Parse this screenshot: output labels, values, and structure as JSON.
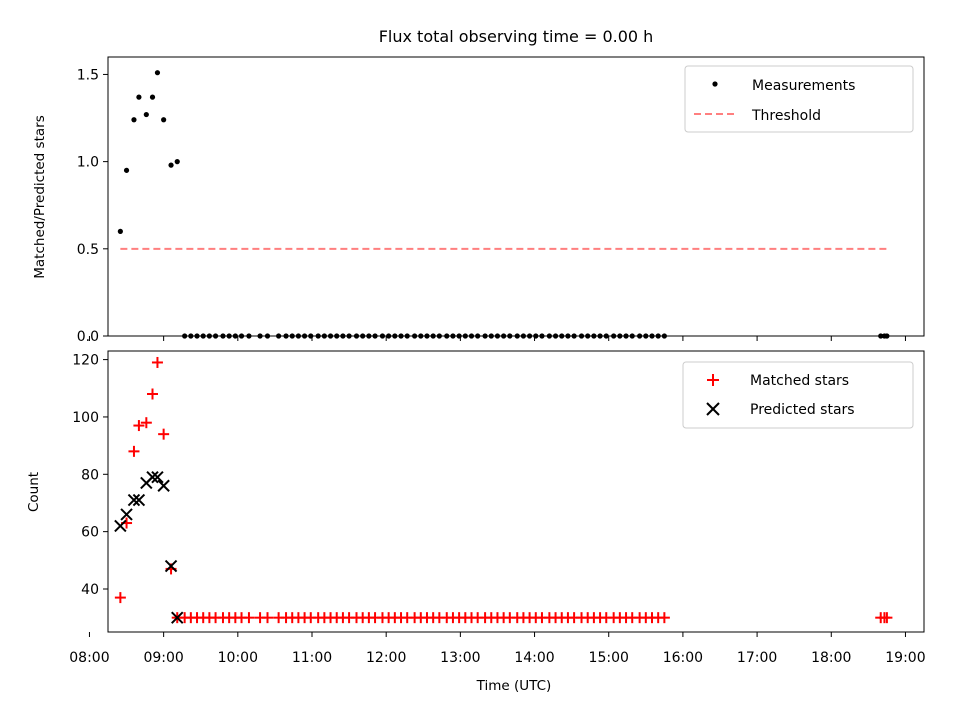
{
  "chart_data": [
    {
      "type": "scatter",
      "title": "Flux total observing time = 0.00 h",
      "xlabel": "",
      "ylabel": "Matched/Predicted stars",
      "xlim": [
        "08:15",
        "19:15"
      ],
      "ylim": [
        0,
        1.6
      ],
      "yticks": [
        0.0,
        0.5,
        1.0,
        1.5
      ],
      "ytick_labels": [
        "0.0",
        "0.5",
        "1.0",
        "1.5"
      ],
      "legend_position": "top-right",
      "grid": false,
      "series": [
        {
          "name": "Measurements",
          "kind": "scatter",
          "marker": "dot",
          "color": "#000000",
          "x": [
            "08:25",
            "08:30",
            "08:36",
            "08:40",
            "08:46",
            "08:51",
            "08:55",
            "09:00",
            "09:06",
            "09:11",
            "09:17",
            "09:22",
            "09:27",
            "09:32",
            "09:37",
            "09:42",
            "09:48",
            "09:53",
            "09:58",
            "10:03",
            "10:09",
            "10:18",
            "10:24",
            "10:33",
            "10:39",
            "10:44",
            "10:49",
            "10:54",
            "10:59",
            "11:05",
            "11:10",
            "11:15",
            "11:20",
            "11:25",
            "11:30",
            "11:36",
            "11:41",
            "11:46",
            "11:51",
            "11:57",
            "12:02",
            "12:07",
            "12:12",
            "12:17",
            "12:23",
            "12:28",
            "12:33",
            "12:38",
            "12:43",
            "12:49",
            "12:54",
            "12:59",
            "13:04",
            "13:09",
            "13:14",
            "13:20",
            "13:25",
            "13:30",
            "13:35",
            "13:40",
            "13:46",
            "13:51",
            "13:56",
            "14:01",
            "14:06",
            "14:12",
            "14:17",
            "14:22",
            "14:27",
            "14:32",
            "14:38",
            "14:43",
            "14:48",
            "14:53",
            "14:58",
            "15:04",
            "15:09",
            "15:14",
            "15:19",
            "15:25",
            "15:30",
            "15:35",
            "15:40",
            "15:45",
            "18:40",
            "18:43",
            "18:45"
          ],
          "y": [
            0.6,
            0.95,
            1.24,
            1.37,
            1.27,
            1.37,
            1.51,
            1.24,
            0.98,
            1.0,
            0,
            0,
            0,
            0,
            0,
            0,
            0,
            0,
            0,
            0,
            0,
            0,
            0,
            0,
            0,
            0,
            0,
            0,
            0,
            0,
            0,
            0,
            0,
            0,
            0,
            0,
            0,
            0,
            0,
            0,
            0,
            0,
            0,
            0,
            0,
            0,
            0,
            0,
            0,
            0,
            0,
            0,
            0,
            0,
            0,
            0,
            0,
            0,
            0,
            0,
            0,
            0,
            0,
            0,
            0,
            0,
            0,
            0,
            0,
            0,
            0,
            0,
            0,
            0,
            0,
            0,
            0,
            0,
            0,
            0,
            0,
            0,
            0,
            0,
            0,
            0,
            0
          ]
        },
        {
          "name": "Threshold",
          "kind": "line",
          "style": "dashed",
          "color": "#ff7f7f",
          "x": [
            "08:25",
            "18:45"
          ],
          "y": [
            0.5,
            0.5
          ]
        }
      ]
    },
    {
      "type": "scatter",
      "title": "",
      "xlabel": "Time (UTC)",
      "ylabel": "Count",
      "xlim": [
        "08:15",
        "19:15"
      ],
      "ylim": [
        25,
        123
      ],
      "yticks": [
        40,
        60,
        80,
        100,
        120
      ],
      "ytick_labels": [
        "40",
        "60",
        "80",
        "100",
        "120"
      ],
      "xticks": [
        "08:00",
        "09:00",
        "10:00",
        "11:00",
        "12:00",
        "13:00",
        "14:00",
        "15:00",
        "16:00",
        "17:00",
        "18:00",
        "19:00"
      ],
      "xtick_labels": [
        "08:00",
        "09:00",
        "10:00",
        "11:00",
        "12:00",
        "13:00",
        "14:00",
        "15:00",
        "16:00",
        "17:00",
        "18:00",
        "19:00"
      ],
      "legend_position": "top-right",
      "grid": false,
      "series": [
        {
          "name": "Matched stars",
          "kind": "scatter",
          "marker": "plus",
          "color": "#ff0000",
          "x": [
            "08:25",
            "08:30",
            "08:36",
            "08:40",
            "08:46",
            "08:51",
            "08:55",
            "09:00",
            "09:06",
            "09:11",
            "09:17",
            "09:22",
            "09:27",
            "09:32",
            "09:37",
            "09:42",
            "09:48",
            "09:53",
            "09:58",
            "10:03",
            "10:09",
            "10:18",
            "10:24",
            "10:33",
            "10:39",
            "10:44",
            "10:49",
            "10:54",
            "10:59",
            "11:05",
            "11:10",
            "11:15",
            "11:20",
            "11:25",
            "11:30",
            "11:36",
            "11:41",
            "11:46",
            "11:51",
            "11:57",
            "12:02",
            "12:07",
            "12:12",
            "12:17",
            "12:23",
            "12:28",
            "12:33",
            "12:38",
            "12:43",
            "12:49",
            "12:54",
            "12:59",
            "13:04",
            "13:09",
            "13:14",
            "13:20",
            "13:25",
            "13:30",
            "13:35",
            "13:40",
            "13:46",
            "13:51",
            "13:56",
            "14:01",
            "14:06",
            "14:12",
            "14:17",
            "14:22",
            "14:27",
            "14:32",
            "14:38",
            "14:43",
            "14:48",
            "14:53",
            "14:58",
            "15:04",
            "15:09",
            "15:14",
            "15:19",
            "15:25",
            "15:30",
            "15:35",
            "15:40",
            "15:45",
            "18:40",
            "18:43",
            "18:45"
          ],
          "y": [
            37,
            63,
            88,
            97,
            98,
            108,
            119,
            94,
            47,
            30,
            30,
            30,
            30,
            30,
            30,
            30,
            30,
            30,
            30,
            30,
            30,
            30,
            30,
            30,
            30,
            30,
            30,
            30,
            30,
            30,
            30,
            30,
            30,
            30,
            30,
            30,
            30,
            30,
            30,
            30,
            30,
            30,
            30,
            30,
            30,
            30,
            30,
            30,
            30,
            30,
            30,
            30,
            30,
            30,
            30,
            30,
            30,
            30,
            30,
            30,
            30,
            30,
            30,
            30,
            30,
            30,
            30,
            30,
            30,
            30,
            30,
            30,
            30,
            30,
            30,
            30,
            30,
            30,
            30,
            30,
            30,
            30,
            30,
            30,
            30,
            30,
            30
          ]
        },
        {
          "name": "Predicted stars",
          "kind": "scatter",
          "marker": "x",
          "color": "#000000",
          "x": [
            "08:25",
            "08:30",
            "08:36",
            "08:40",
            "08:46",
            "08:51",
            "08:55",
            "09:00",
            "09:06",
            "09:11"
          ],
          "y": [
            62,
            66,
            71,
            71,
            77,
            79,
            79,
            76,
            48,
            30
          ]
        }
      ]
    }
  ]
}
